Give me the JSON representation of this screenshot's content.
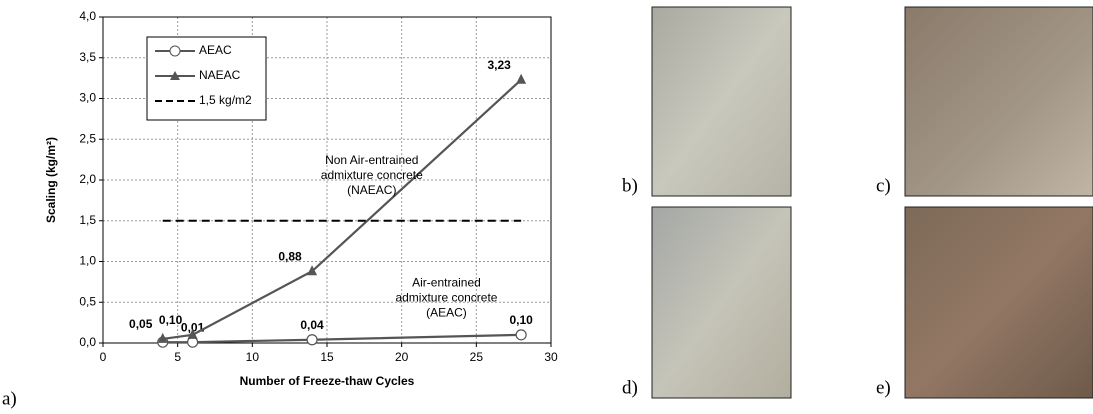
{
  "chart_data": {
    "type": "line",
    "xlabel": "Number of Freeze-thaw Cycles",
    "ylabel": "Scaling (kg/m²)",
    "xlim": [
      0,
      30
    ],
    "xticks": [
      0,
      5,
      10,
      15,
      20,
      25,
      30
    ],
    "ylim": [
      0,
      4
    ],
    "yticks": [
      {
        "value": 0,
        "label": "0,0"
      },
      {
        "value": 0.5,
        "label": "0,5"
      },
      {
        "value": 1,
        "label": "1,0"
      },
      {
        "value": 1.5,
        "label": "1,5"
      },
      {
        "value": 2,
        "label": "2,0"
      },
      {
        "value": 2.5,
        "label": "2,5"
      },
      {
        "value": 3,
        "label": "3,0"
      },
      {
        "value": 3.5,
        "label": "3,5"
      },
      {
        "value": 4,
        "label": "4,0"
      }
    ],
    "grid": true,
    "series": [
      {
        "name": "AEAC",
        "color": "#555555",
        "marker": "circle",
        "dashed": false,
        "x": [
          4,
          6,
          14,
          28
        ],
        "values": [
          0.01,
          0.01,
          0.04,
          0.1
        ],
        "value_labels": [
          null,
          "0,01",
          "0,04",
          "0,10"
        ]
      },
      {
        "name": "NAEAC",
        "color": "#555555",
        "marker": "triangle",
        "dashed": false,
        "x": [
          4,
          6,
          14,
          28
        ],
        "values": [
          0.05,
          0.1,
          0.88,
          3.23
        ],
        "value_labels": [
          "0,05",
          "0,10",
          "0,88",
          "3,23"
        ]
      },
      {
        "name": "1,5 kg/m2",
        "color": "#000000",
        "marker": null,
        "dashed": true,
        "x": [
          4,
          28
        ],
        "values": [
          1.5,
          1.5
        ]
      }
    ],
    "annotations": [
      {
        "lines": [
          "Non Air-entrained",
          "admixture concrete",
          "(NAEAC)"
        ],
        "x": 18,
        "y": 2.05
      },
      {
        "lines": [
          "Air-entrained",
          "admixture concrete",
          "(AEAC)"
        ],
        "x": 23,
        "y": 0.55
      }
    ],
    "panel_labels": [
      "a)",
      "b)",
      "c)",
      "d)",
      "e)"
    ]
  }
}
